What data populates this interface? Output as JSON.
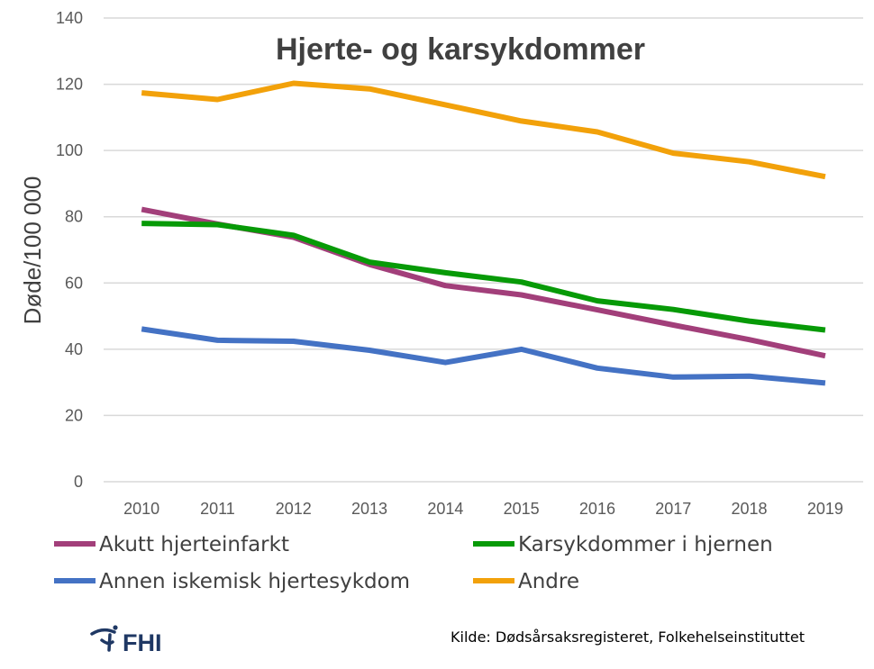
{
  "chart_data": {
    "type": "line",
    "title": "Hjerte- og karsykdommer",
    "xlabel": "",
    "ylabel": "Døde/100 000",
    "ylim": [
      0,
      140
    ],
    "yticks": [
      0,
      20,
      40,
      60,
      80,
      100,
      120,
      140
    ],
    "grid": true,
    "legend_position": "bottom",
    "x": [
      "2010",
      "2011",
      "2012",
      "2013",
      "2014",
      "2015",
      "2016",
      "2017",
      "2018",
      "2019"
    ],
    "series": [
      {
        "name": "Akutt hjerteinfarkt",
        "color": "#a23f7a",
        "values": [
          82.2,
          77.8,
          73.8,
          65.6,
          59.2,
          56.4,
          51.9,
          47.3,
          42.9,
          38.0
        ]
      },
      {
        "name": "Karsykdommer i hjernen",
        "color": "#079a07",
        "values": [
          78.0,
          77.6,
          74.4,
          66.3,
          63.1,
          60.3,
          54.6,
          52.0,
          48.5,
          45.8
        ]
      },
      {
        "name": "Annen iskemisk hjertesykdom",
        "color": "#4472c4",
        "values": [
          46.1,
          42.7,
          42.4,
          39.7,
          36.0,
          40.0,
          34.3,
          31.6,
          31.9,
          29.8
        ]
      },
      {
        "name": "Andre",
        "color": "#f2a10a",
        "values": [
          117.4,
          115.4,
          120.3,
          118.6,
          113.8,
          108.9,
          105.6,
          99.2,
          96.6,
          92.1
        ]
      }
    ]
  },
  "source_note": "Kilde: Dødsårsaksregisteret, Folkehelseinstituttet",
  "logo": {
    "text": "FHI",
    "icon": "fhi-logo-icon"
  }
}
